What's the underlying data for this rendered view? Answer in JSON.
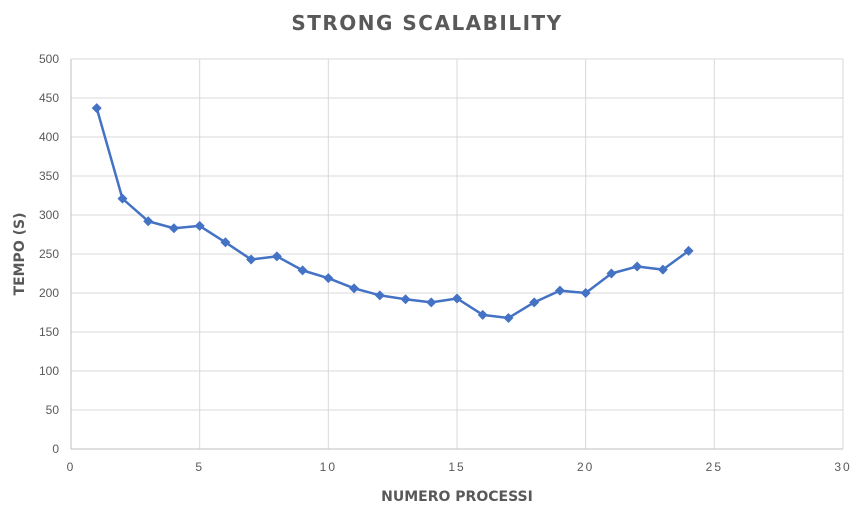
{
  "chart_data": {
    "type": "scatter",
    "title": "STRONG SCALABILITY",
    "xlabel": "NUMERO PROCESSI",
    "ylabel": "TEMPO (S)",
    "xlim": [
      0,
      30
    ],
    "ylim": [
      0,
      500
    ],
    "x_ticks": [
      0,
      5,
      10,
      15,
      20,
      25,
      30
    ],
    "y_ticks": [
      0,
      50,
      100,
      150,
      200,
      250,
      300,
      350,
      400,
      450,
      500
    ],
    "grid": true,
    "legend": "none",
    "series_color": "#4472c4",
    "marker": "diamond",
    "x": [
      1,
      2,
      3,
      4,
      5,
      6,
      7,
      8,
      9,
      10,
      11,
      12,
      13,
      14,
      15,
      16,
      17,
      18,
      19,
      20,
      21,
      22,
      23,
      24
    ],
    "y": [
      437,
      321,
      292,
      283,
      286,
      265,
      243,
      247,
      229,
      219,
      206,
      197,
      192,
      188,
      193,
      172,
      168,
      188,
      203,
      200,
      225,
      234,
      230,
      254
    ]
  }
}
